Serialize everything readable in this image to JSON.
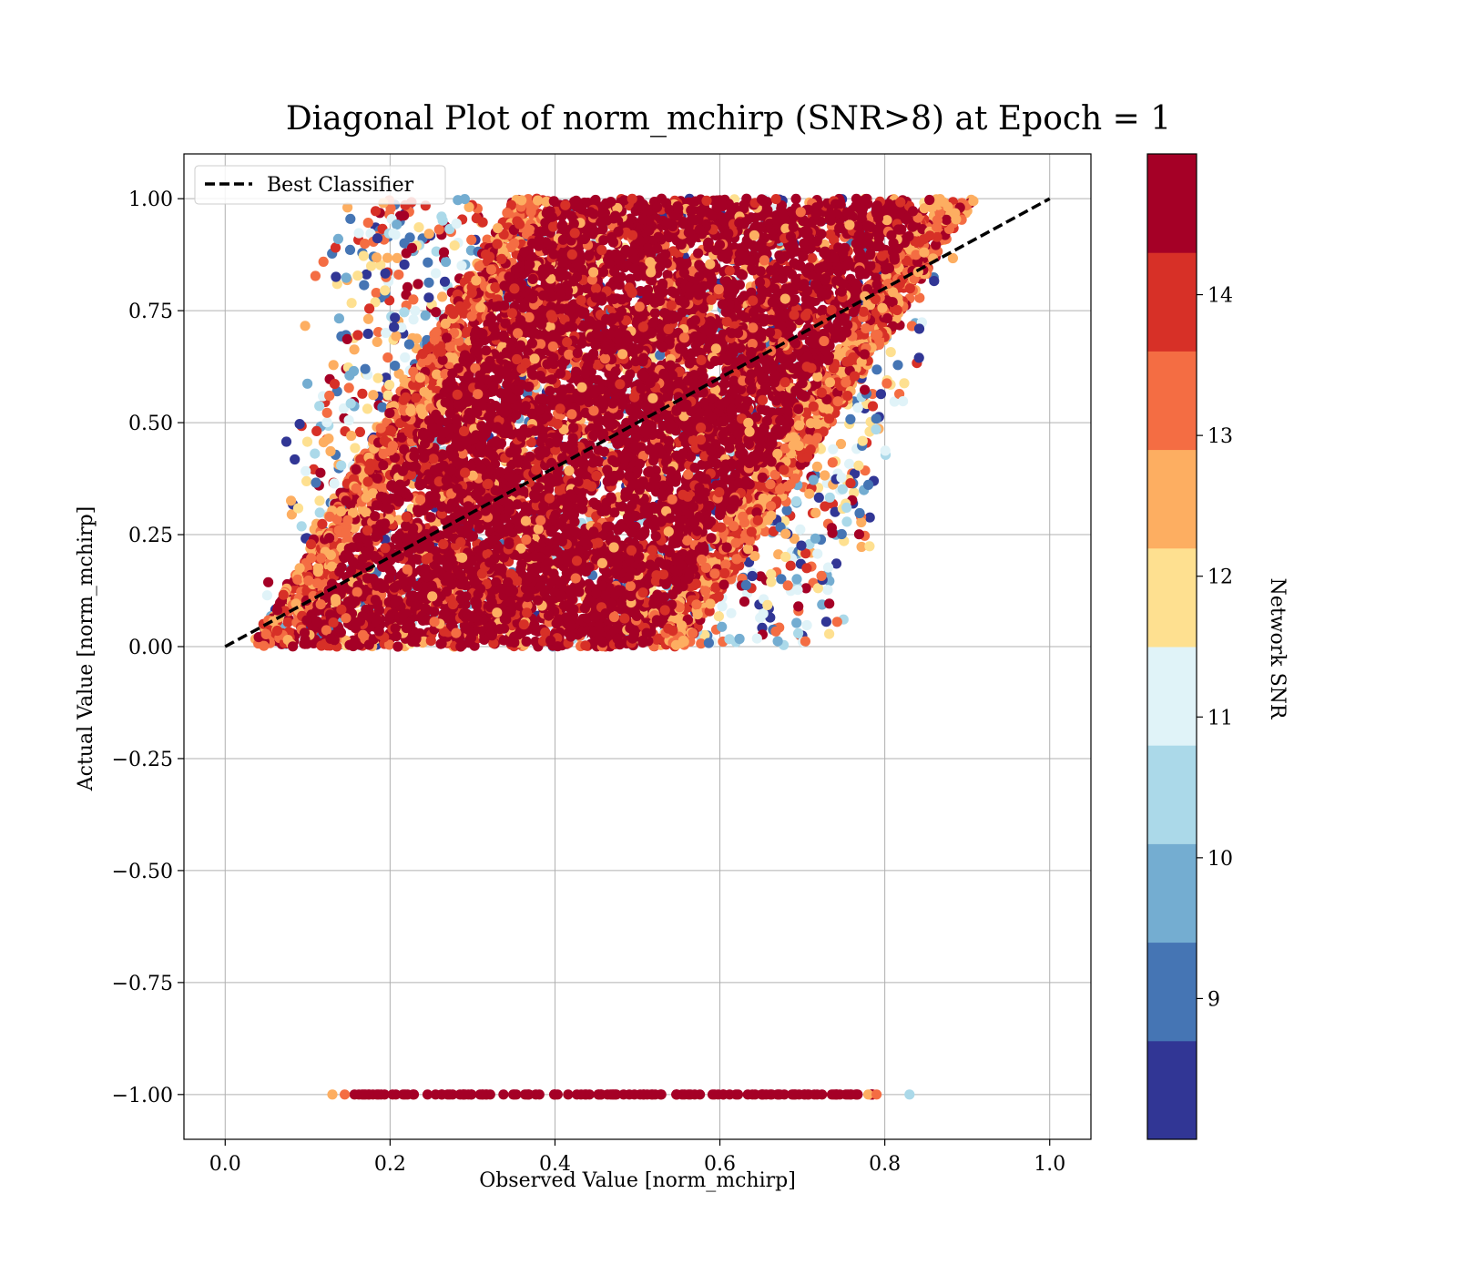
{
  "chart_data": {
    "type": "scatter",
    "title": "Diagonal Plot of norm_mchirp (SNR>8) at Epoch = 1",
    "xlabel": "Observed Value [norm_mchirp]",
    "ylabel": "Actual Value [norm_mchirp]",
    "xlim": [
      -0.05,
      1.05
    ],
    "ylim": [
      -1.1,
      1.1
    ],
    "x_ticks": [
      0.0,
      0.2,
      0.4,
      0.6,
      0.8,
      1.0
    ],
    "x_tick_labels": [
      "0.0",
      "0.2",
      "0.4",
      "0.6",
      "0.8",
      "1.0"
    ],
    "y_ticks": [
      1.0,
      0.75,
      0.5,
      0.25,
      0.0,
      -0.25,
      -0.5,
      -0.75,
      -1.0
    ],
    "y_tick_labels": [
      "1.00",
      "0.75",
      "0.50",
      "0.25",
      "0.00",
      "−0.25",
      "−0.50",
      "−0.75",
      "−1.00"
    ],
    "grid": true,
    "legend": {
      "placement": "upper-left",
      "entries": [
        {
          "label": "Best Classifier",
          "style": "dashed",
          "color": "#000000"
        }
      ]
    },
    "reference_line": {
      "name": "Best Classifier",
      "x": [
        0.0,
        1.0
      ],
      "y": [
        0.0,
        1.0
      ],
      "style": "dashed",
      "color": "#000000"
    },
    "point_clouds": [
      {
        "region": "main parallelogram band",
        "y_range": [
          0.0,
          1.0
        ],
        "x_at_y0": [
          0.08,
          0.51
        ],
        "x_at_y1": [
          0.4,
          0.86
        ],
        "dominant_snr": "14+"
      },
      {
        "region": "scattered outer points",
        "y_range": [
          0.0,
          1.0
        ],
        "x_at_y0": [
          0.06,
          0.73
        ],
        "x_at_y1": [
          0.15,
          0.88
        ],
        "snr_range": [
          8,
          15
        ]
      },
      {
        "region": "flagged row",
        "y": -1.0,
        "x_range": [
          0.13,
          0.83
        ],
        "dominant_snr": "14+"
      }
    ],
    "colorbar": {
      "label": "Network SNR",
      "tick_labels": [
        "9",
        "10",
        "11",
        "12",
        "13",
        "14"
      ],
      "tick_values": [
        9,
        10,
        11,
        12,
        13,
        14
      ],
      "range": [
        8,
        15
      ],
      "bins": [
        8,
        8.7,
        9.4,
        10.1,
        10.8,
        11.5,
        12.2,
        12.9,
        13.6,
        14.3,
        15
      ],
      "colors": [
        "#313695",
        "#4575b4",
        "#74add1",
        "#abd9e9",
        "#e0f3f8",
        "#fee090",
        "#fdae61",
        "#f46d43",
        "#d73027",
        "#a50026"
      ]
    }
  }
}
